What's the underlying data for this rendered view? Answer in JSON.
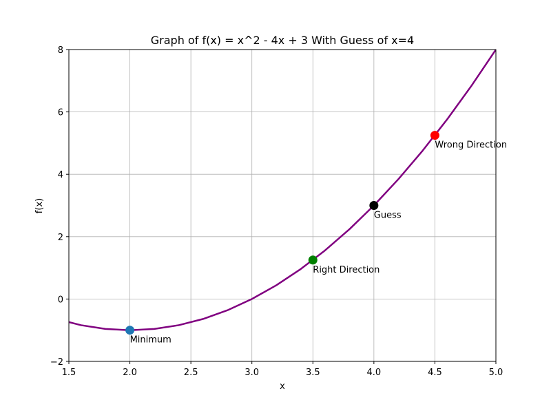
{
  "chart_data": {
    "type": "line",
    "title": "Graph of f(x) = x^2 - 4x + 3 With Guess of x=4",
    "xlabel": "x",
    "ylabel": "f(x)",
    "xlim": [
      1.5,
      5.0
    ],
    "ylim": [
      -2,
      8
    ],
    "xticks": [
      1.5,
      2.0,
      2.5,
      3.0,
      3.5,
      4.0,
      4.5,
      5.0
    ],
    "xtick_labels": [
      "1.5",
      "2.0",
      "2.5",
      "3.0",
      "3.5",
      "4.0",
      "4.5",
      "5.0"
    ],
    "yticks": [
      -2,
      0,
      2,
      4,
      6,
      8
    ],
    "ytick_labels": [
      "−2",
      "0",
      "2",
      "4",
      "6",
      "8"
    ],
    "grid": true,
    "series": [
      {
        "color": "#800080",
        "x": [
          1.4,
          1.6,
          1.8,
          2.0,
          2.2,
          2.4,
          2.6,
          2.8,
          3.0,
          3.2,
          3.4,
          3.6,
          3.8,
          4.0,
          4.2,
          4.4,
          4.6,
          4.8,
          5.0
        ],
        "y": [
          -0.64,
          -0.84,
          -0.96,
          -1.0,
          -0.96,
          -0.84,
          -0.64,
          -0.36,
          0.0,
          0.44,
          0.96,
          1.56,
          2.24,
          3.0,
          3.84,
          4.76,
          5.76,
          6.84,
          8.0
        ]
      }
    ],
    "points": [
      {
        "x": 2.0,
        "y": -1.0,
        "color": "#1f77b4",
        "label": "Minimum"
      },
      {
        "x": 3.5,
        "y": 1.25,
        "color": "#008000",
        "label": "Right Direction"
      },
      {
        "x": 4.0,
        "y": 3.0,
        "color": "#000000",
        "label": "Guess"
      },
      {
        "x": 4.5,
        "y": 5.25,
        "color": "#ff0000",
        "label": "Wrong Direction"
      }
    ]
  }
}
